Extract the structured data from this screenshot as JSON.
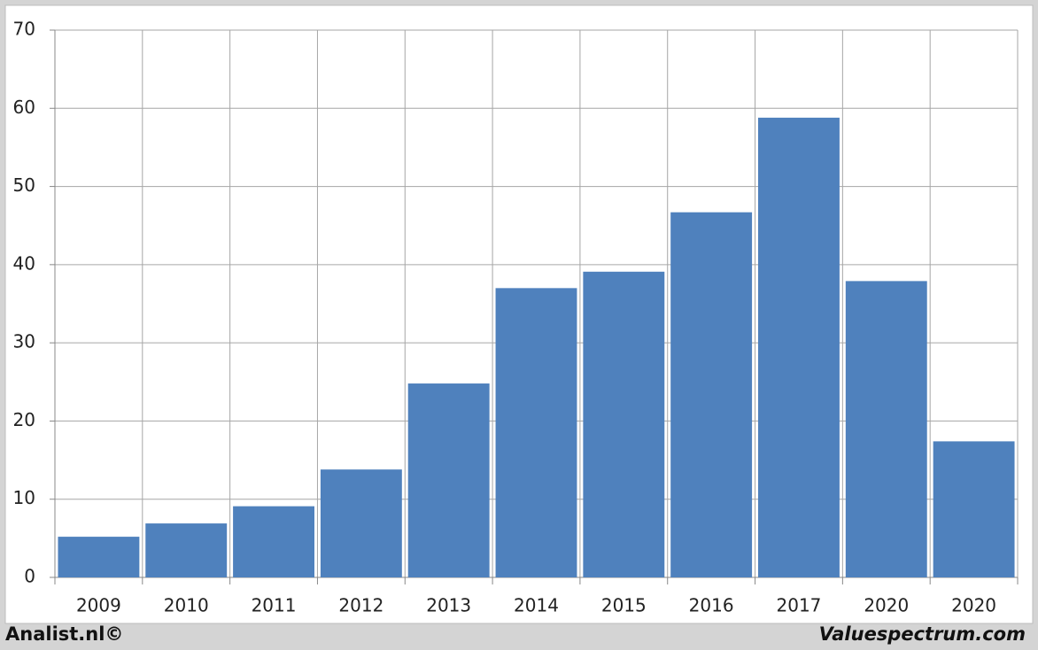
{
  "chart_data": {
    "type": "bar",
    "categories": [
      "2009",
      "2010",
      "2011",
      "2012",
      "2013",
      "2014",
      "2015",
      "2016",
      "2017",
      "2020",
      "2020"
    ],
    "values": [
      5.2,
      6.9,
      9.1,
      13.8,
      24.8,
      37.0,
      39.1,
      46.7,
      58.8,
      37.9,
      17.4
    ],
    "color": "#4f81bd",
    "ylim": [
      0,
      70
    ],
    "yticks": [
      0,
      10,
      20,
      30,
      40,
      50,
      60,
      70
    ],
    "grid": true,
    "footer_left": "Analist.nl©",
    "footer_right": "Valuespectrum.com"
  }
}
